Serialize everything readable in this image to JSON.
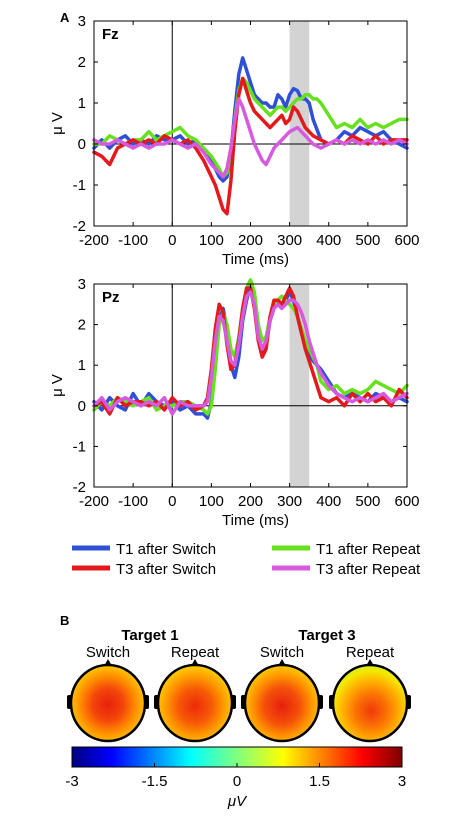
{
  "panel_a_label": "A",
  "panel_b_label": "B",
  "colors": {
    "t1_switch": "#2f4fd6",
    "t1_repeat": "#66e01f",
    "t3_switch": "#e3191c",
    "t3_repeat": "#d65ae0",
    "highlight": "#d3d3d3"
  },
  "legend": [
    {
      "label": "T1 after Switch",
      "series": "t1_switch"
    },
    {
      "label": "T1 after Repeat",
      "series": "t1_repeat"
    },
    {
      "label": "T3 after Switch",
      "series": "t3_switch"
    },
    {
      "label": "T3 after Repeat",
      "series": "t3_repeat"
    }
  ],
  "chart_data": [
    {
      "type": "line",
      "title": "Fz",
      "xlabel": "Time (ms)",
      "ylabel": "μ V",
      "xlim": [
        -200,
        600
      ],
      "ylim": [
        -2,
        3
      ],
      "xticks": [
        -200,
        -100,
        0,
        100,
        200,
        300,
        400,
        500,
        600
      ],
      "yticks": [
        -2,
        -1,
        0,
        1,
        2,
        3
      ],
      "highlight_window": [
        300,
        350
      ],
      "series": [
        {
          "name": "T1 after Switch",
          "key": "t1_switch",
          "x": [
            -200,
            -180,
            -160,
            -140,
            -120,
            -100,
            -80,
            -60,
            -40,
            -20,
            0,
            20,
            40,
            60,
            80,
            100,
            110,
            120,
            130,
            140,
            150,
            160,
            170,
            180,
            190,
            200,
            210,
            220,
            230,
            240,
            250,
            260,
            270,
            280,
            290,
            300,
            310,
            320,
            330,
            340,
            350,
            360,
            380,
            400,
            420,
            440,
            460,
            480,
            500,
            520,
            540,
            560,
            580,
            600
          ],
          "y": [
            -0.1,
            0.1,
            -0.1,
            0.1,
            0.2,
            0.0,
            0.1,
            0.0,
            0.2,
            0.1,
            0.1,
            0.2,
            0.0,
            0.1,
            -0.2,
            -0.4,
            -0.6,
            -0.8,
            -0.9,
            -0.8,
            -0.2,
            0.8,
            1.7,
            2.1,
            1.8,
            1.5,
            1.2,
            1.1,
            1.0,
            1.0,
            0.9,
            0.9,
            1.2,
            1.1,
            0.9,
            1.2,
            1.35,
            1.3,
            1.1,
            1.1,
            1.0,
            0.6,
            0.1,
            0.0,
            0.1,
            0.3,
            0.2,
            0.4,
            0.3,
            0.2,
            0.3,
            0.1,
            0.0,
            -0.1
          ]
        },
        {
          "name": "T1 after Repeat",
          "key": "t1_repeat",
          "x": [
            -200,
            -180,
            -160,
            -140,
            -120,
            -100,
            -80,
            -60,
            -40,
            -20,
            0,
            20,
            40,
            60,
            80,
            100,
            120,
            130,
            140,
            150,
            160,
            170,
            180,
            190,
            200,
            210,
            220,
            230,
            240,
            250,
            260,
            270,
            280,
            290,
            300,
            310,
            320,
            330,
            340,
            350,
            360,
            370,
            380,
            400,
            420,
            440,
            460,
            480,
            500,
            520,
            540,
            560,
            580,
            600
          ],
          "y": [
            0.0,
            0.0,
            0.2,
            0.1,
            0.0,
            0.1,
            0.1,
            0.3,
            0.1,
            0.2,
            0.3,
            0.4,
            0.2,
            0.1,
            -0.1,
            -0.3,
            -0.6,
            -0.8,
            -0.7,
            -0.2,
            0.6,
            1.3,
            1.6,
            1.5,
            1.3,
            1.1,
            1.0,
            0.9,
            0.8,
            0.7,
            0.8,
            0.9,
            0.9,
            0.8,
            0.9,
            1.0,
            1.1,
            1.1,
            1.2,
            1.2,
            1.1,
            1.1,
            1.0,
            0.7,
            0.4,
            0.5,
            0.4,
            0.6,
            0.4,
            0.5,
            0.4,
            0.5,
            0.6,
            0.6
          ]
        },
        {
          "name": "T3 after Switch",
          "key": "t3_switch",
          "x": [
            -200,
            -180,
            -160,
            -140,
            -120,
            -100,
            -80,
            -60,
            -40,
            -20,
            0,
            20,
            40,
            60,
            80,
            100,
            110,
            120,
            130,
            140,
            150,
            160,
            170,
            180,
            190,
            200,
            210,
            220,
            230,
            240,
            250,
            260,
            270,
            280,
            290,
            300,
            310,
            320,
            330,
            340,
            350,
            360,
            380,
            400,
            420,
            440,
            460,
            480,
            500,
            520,
            540,
            560,
            580,
            600
          ],
          "y": [
            -0.2,
            -0.3,
            -0.5,
            -0.1,
            0.0,
            0.1,
            0.0,
            0.1,
            0.0,
            0.2,
            0.1,
            0.0,
            0.1,
            -0.1,
            -0.4,
            -0.8,
            -1.0,
            -1.3,
            -1.6,
            -1.7,
            -0.9,
            0.3,
            1.2,
            1.6,
            1.3,
            1.0,
            0.8,
            0.7,
            0.6,
            0.5,
            0.4,
            0.5,
            0.6,
            0.7,
            0.5,
            0.6,
            0.9,
            0.8,
            0.6,
            0.4,
            0.3,
            0.2,
            0.1,
            0.0,
            0.1,
            0.0,
            0.2,
            0.1,
            0.0,
            0.2,
            0.0,
            0.1,
            0.1,
            0.1
          ]
        },
        {
          "name": "T3 after Repeat",
          "key": "t3_repeat",
          "x": [
            -200,
            -180,
            -160,
            -140,
            -120,
            -100,
            -80,
            -60,
            -40,
            -20,
            0,
            20,
            40,
            60,
            80,
            100,
            120,
            130,
            140,
            150,
            160,
            170,
            180,
            190,
            200,
            210,
            220,
            230,
            240,
            250,
            260,
            270,
            280,
            290,
            300,
            310,
            320,
            330,
            340,
            350,
            360,
            380,
            400,
            420,
            440,
            460,
            480,
            500,
            520,
            540,
            560,
            580,
            600
          ],
          "y": [
            0.1,
            0.0,
            0.0,
            0.1,
            0.0,
            -0.1,
            0.0,
            -0.1,
            0.0,
            0.0,
            0.1,
            0.0,
            -0.1,
            0.0,
            -0.2,
            -0.5,
            -0.7,
            -0.8,
            -0.6,
            -0.1,
            0.6,
            1.1,
            0.9,
            0.6,
            0.3,
            0.0,
            -0.2,
            -0.4,
            -0.5,
            -0.3,
            -0.1,
            0.0,
            0.1,
            0.2,
            0.3,
            0.35,
            0.4,
            0.3,
            0.2,
            0.1,
            0.0,
            -0.1,
            0.0,
            0.1,
            0.0,
            0.1,
            0.0,
            0.1,
            0.0,
            0.1,
            0.0,
            0.1,
            0.0
          ]
        }
      ]
    },
    {
      "type": "line",
      "title": "Pz",
      "xlabel": "Time (ms)",
      "ylabel": "μ V",
      "xlim": [
        -200,
        600
      ],
      "ylim": [
        -2,
        3
      ],
      "xticks": [
        -200,
        -100,
        0,
        100,
        200,
        300,
        400,
        500,
        600
      ],
      "yticks": [
        -2,
        -1,
        0,
        1,
        2,
        3
      ],
      "highlight_window": [
        300,
        350
      ],
      "series": [
        {
          "name": "T1 after Switch",
          "key": "t1_switch",
          "x": [
            -200,
            -180,
            -160,
            -140,
            -120,
            -100,
            -80,
            -60,
            -40,
            -20,
            0,
            20,
            40,
            60,
            80,
            90,
            100,
            110,
            120,
            130,
            140,
            150,
            160,
            170,
            180,
            190,
            200,
            210,
            220,
            230,
            240,
            250,
            260,
            270,
            280,
            290,
            300,
            310,
            320,
            330,
            340,
            350,
            360,
            370,
            380,
            400,
            420,
            440,
            460,
            480,
            500,
            520,
            540,
            560,
            580,
            600
          ],
          "y": [
            0.1,
            -0.1,
            0.2,
            0.0,
            -0.1,
            0.3,
            0.0,
            0.3,
            0.1,
            0.0,
            0.1,
            -0.1,
            0.0,
            -0.2,
            -0.2,
            -0.3,
            0.1,
            1.0,
            2.1,
            2.4,
            1.9,
            1.0,
            0.7,
            1.2,
            2.1,
            2.6,
            3.0,
            2.7,
            1.8,
            1.3,
            1.5,
            2.1,
            2.4,
            2.5,
            2.5,
            2.6,
            2.8,
            2.6,
            2.2,
            1.8,
            1.5,
            1.3,
            1.1,
            1.0,
            0.9,
            0.6,
            0.3,
            0.2,
            0.3,
            0.2,
            0.1,
            0.3,
            0.2,
            0.1,
            0.2,
            0.1
          ]
        },
        {
          "name": "T1 after Repeat",
          "key": "t1_repeat",
          "x": [
            -200,
            -180,
            -160,
            -140,
            -120,
            -100,
            -80,
            -60,
            -40,
            -20,
            0,
            20,
            40,
            60,
            80,
            90,
            100,
            110,
            120,
            130,
            140,
            150,
            160,
            170,
            180,
            190,
            200,
            210,
            220,
            230,
            240,
            250,
            260,
            270,
            280,
            290,
            300,
            310,
            320,
            330,
            340,
            350,
            360,
            370,
            380,
            400,
            420,
            440,
            460,
            480,
            500,
            520,
            540,
            560,
            580,
            600
          ],
          "y": [
            -0.1,
            0.1,
            0.0,
            0.2,
            0.1,
            0.0,
            0.1,
            0.2,
            -0.1,
            0.0,
            0.0,
            0.1,
            0.1,
            0.0,
            -0.1,
            -0.2,
            0.0,
            0.9,
            2.0,
            2.3,
            2.0,
            1.4,
            1.2,
            1.7,
            2.4,
            2.9,
            3.1,
            2.8,
            2.0,
            1.6,
            1.7,
            2.2,
            2.5,
            2.6,
            2.7,
            2.6,
            2.5,
            2.4,
            2.2,
            1.9,
            1.6,
            1.4,
            1.2,
            1.0,
            0.6,
            0.4,
            0.5,
            0.3,
            0.4,
            0.3,
            0.4,
            0.6,
            0.5,
            0.4,
            0.3,
            0.5
          ]
        },
        {
          "name": "T3 after Switch",
          "key": "t3_switch",
          "x": [
            -200,
            -180,
            -160,
            -140,
            -120,
            -100,
            -80,
            -60,
            -40,
            -20,
            0,
            20,
            40,
            60,
            80,
            90,
            100,
            110,
            120,
            130,
            140,
            150,
            160,
            170,
            180,
            190,
            200,
            210,
            220,
            230,
            240,
            250,
            260,
            270,
            280,
            290,
            300,
            310,
            320,
            330,
            340,
            350,
            360,
            370,
            380,
            400,
            420,
            440,
            460,
            480,
            500,
            520,
            540,
            560,
            580,
            600
          ],
          "y": [
            0.0,
            0.1,
            -0.2,
            0.2,
            0.0,
            0.1,
            0.1,
            0.0,
            0.1,
            -0.1,
            0.2,
            0.0,
            0.1,
            -0.1,
            0.0,
            0.2,
            0.9,
            1.9,
            2.5,
            2.3,
            1.5,
            0.9,
            1.0,
            1.6,
            2.4,
            2.9,
            2.9,
            2.4,
            1.6,
            1.2,
            1.4,
            2.2,
            2.6,
            2.6,
            2.5,
            2.7,
            2.9,
            2.7,
            2.2,
            1.8,
            1.4,
            1.1,
            0.8,
            0.5,
            0.2,
            0.1,
            0.2,
            0.0,
            0.3,
            0.1,
            0.3,
            0.1,
            0.2,
            0.0,
            0.4,
            0.2
          ]
        },
        {
          "name": "T3 after Repeat",
          "key": "t3_repeat",
          "x": [
            -200,
            -180,
            -160,
            -140,
            -120,
            -100,
            -80,
            -60,
            -40,
            -20,
            0,
            20,
            40,
            60,
            80,
            90,
            100,
            110,
            120,
            130,
            140,
            150,
            160,
            170,
            180,
            190,
            200,
            210,
            220,
            230,
            240,
            250,
            260,
            270,
            280,
            290,
            300,
            310,
            320,
            330,
            340,
            350,
            360,
            370,
            380,
            400,
            420,
            440,
            460,
            480,
            500,
            520,
            540,
            560,
            580,
            600
          ],
          "y": [
            0.0,
            0.2,
            -0.1,
            0.1,
            0.2,
            0.1,
            0.0,
            0.1,
            0.0,
            0.2,
            -0.2,
            0.1,
            0.0,
            0.0,
            0.0,
            0.1,
            0.7,
            1.6,
            2.2,
            2.1,
            1.6,
            1.1,
            1.0,
            1.5,
            2.2,
            2.7,
            2.8,
            2.5,
            1.7,
            1.4,
            1.6,
            2.1,
            2.4,
            2.5,
            2.4,
            2.5,
            2.6,
            2.6,
            2.5,
            2.3,
            2.0,
            1.6,
            1.3,
            1.0,
            0.8,
            0.5,
            0.3,
            0.2,
            0.1,
            0.2,
            0.1,
            0.2,
            0.3,
            0.1,
            0.2,
            0.3
          ]
        }
      ]
    },
    {
      "type": "heatmap",
      "subtype": "topographic-maps",
      "groups": [
        {
          "title": "Target 1",
          "conditions": [
            "Switch",
            "Repeat"
          ]
        },
        {
          "title": "Target 3",
          "conditions": [
            "Switch",
            "Repeat"
          ]
        }
      ],
      "colorbar": {
        "colormap": "jet",
        "range": [
          -3,
          3
        ],
        "ticks": [
          "-3",
          "-1.5",
          "0",
          "1.5",
          "3"
        ],
        "label": "μV"
      }
    }
  ]
}
